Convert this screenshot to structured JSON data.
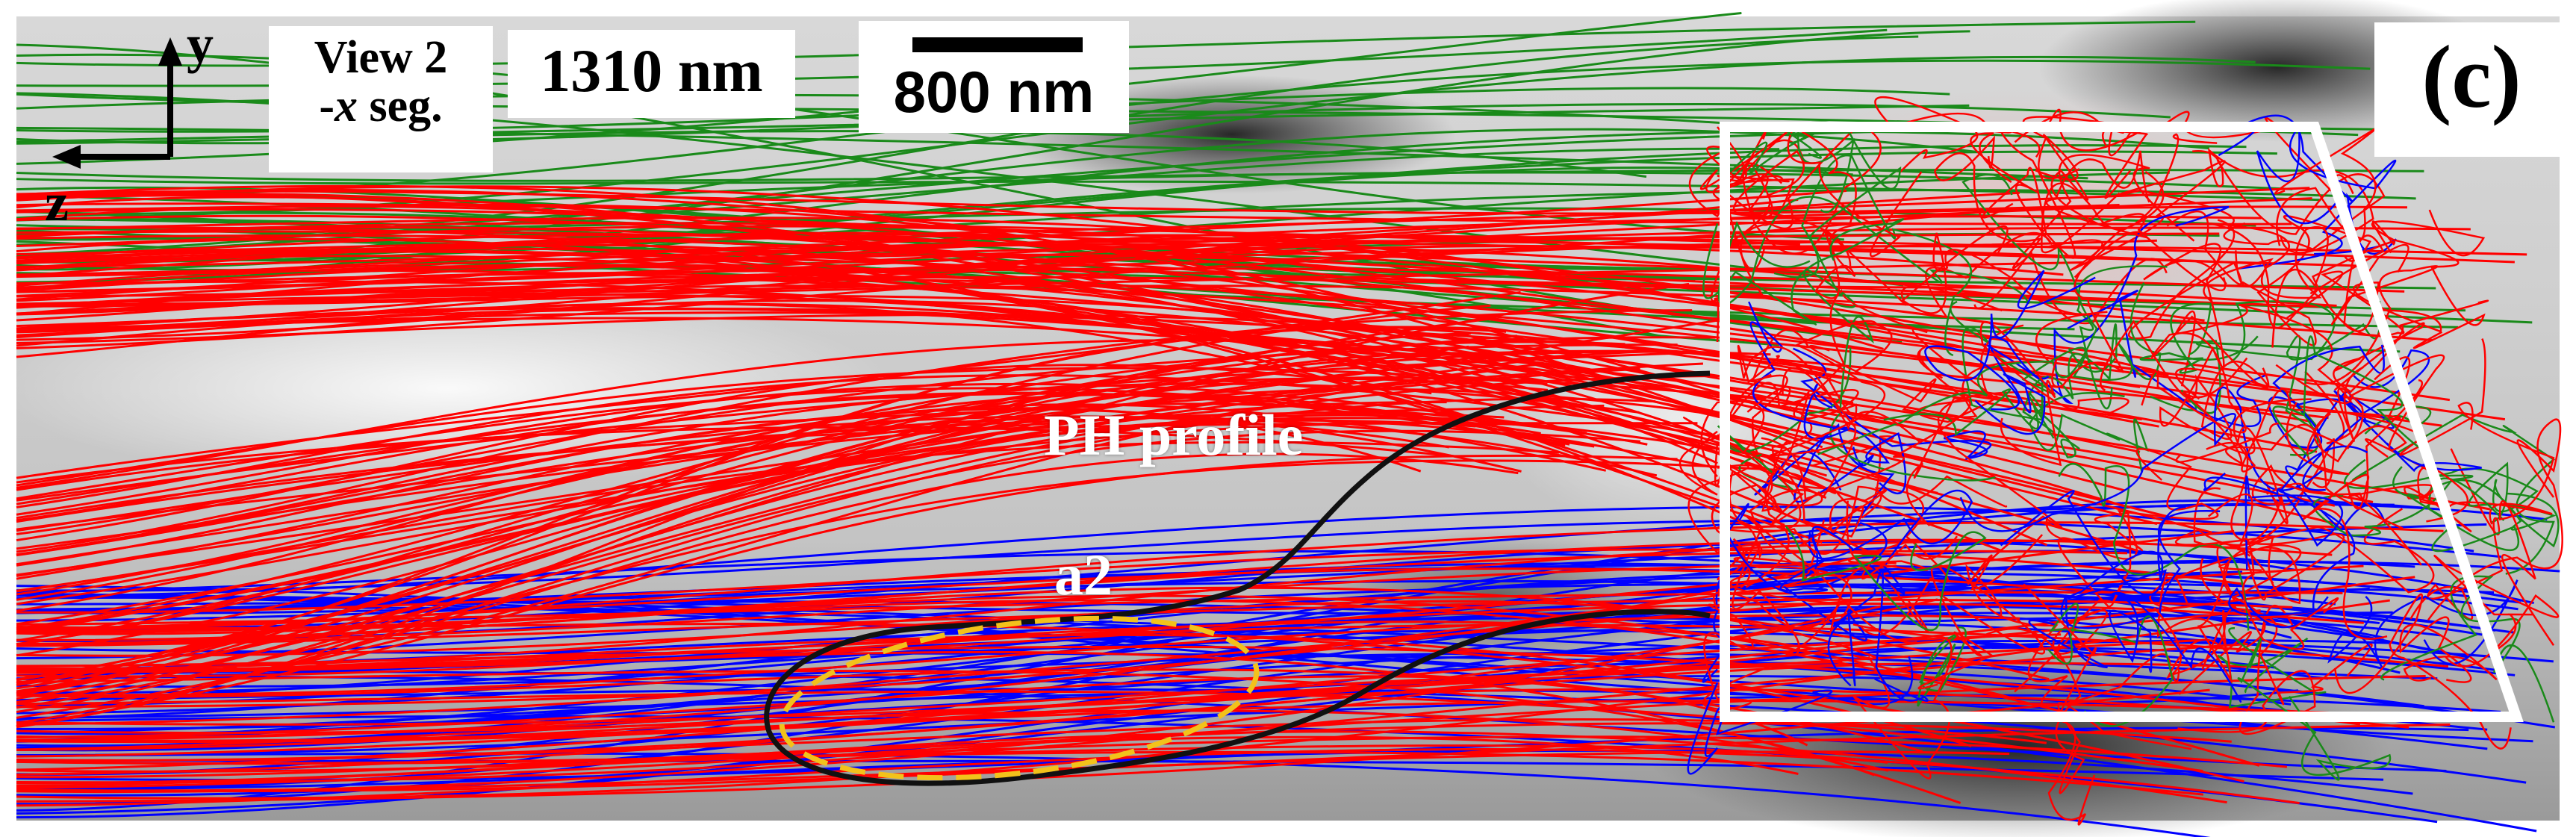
{
  "figure": {
    "panel_label": "(c)",
    "view": {
      "line1": "View 2",
      "line2_prefix": "-",
      "line2_axis": "x",
      "line2_suffix": " seg."
    },
    "depth": "1310 nm",
    "scale_bar_label": "800 nm",
    "axes": {
      "y": "y",
      "z": "z"
    },
    "annotations": {
      "profile": "PH profile",
      "region": "a2"
    }
  },
  "colors": {
    "red_lines": "#ff0000",
    "green_lines": "#1a8a1a",
    "blue_lines": "#0000ff",
    "outline": "#111111",
    "dashed_outline": "#f2c21b",
    "frame": "#ffffff"
  }
}
